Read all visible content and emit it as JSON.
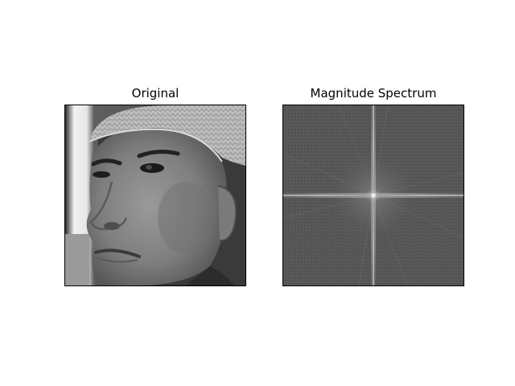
{
  "figure": {
    "panels": [
      {
        "title": "Original",
        "content_icon": "grayscale-face-photo"
      },
      {
        "title": "Magnitude Spectrum",
        "content_icon": "fft-magnitude-spectrum"
      }
    ]
  }
}
